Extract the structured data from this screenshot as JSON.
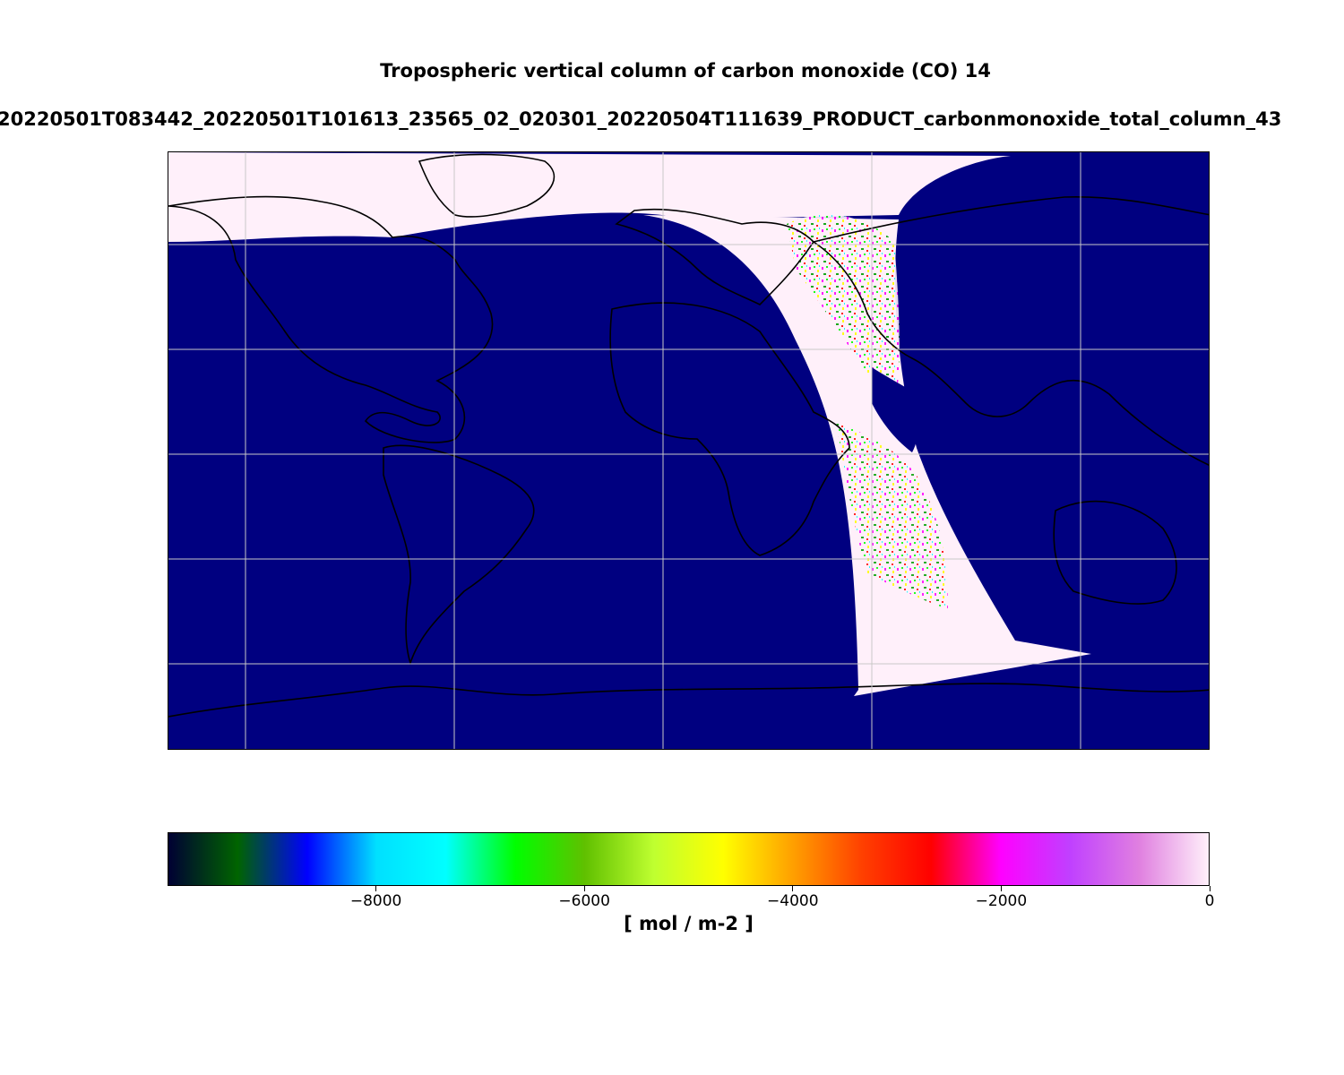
{
  "title": "Tropospheric vertical column of carbon monoxide (CO) 14",
  "subtitle": "20220501T083442_20220501T101613_23565_02_020301_20220504T111639_PRODUCT_carbonmonoxide_total_column_43",
  "map": {
    "projection": "equirectangular",
    "background_color": "#000080",
    "coastline_color": "#000000",
    "gridline_color": "#c8c8c8",
    "swath": {
      "description_colors": [
        "#fff0fa",
        "#ff00ff",
        "#00ff00",
        "#ffff00",
        "#ff0000",
        "#00ffff"
      ]
    }
  },
  "colorbar": {
    "unit_label": "[ mol / m-2 ]",
    "range": [
      -10000,
      0
    ],
    "ticks": [
      {
        "value": -8000,
        "label": "−8000"
      },
      {
        "value": -6000,
        "label": "−6000"
      },
      {
        "value": -4000,
        "label": "−4000"
      },
      {
        "value": -2000,
        "label": "−2000"
      },
      {
        "value": 0,
        "label": "0"
      }
    ],
    "colormap": [
      "#000033",
      "#006400",
      "#0000ff",
      "#00e0ff",
      "#00ffff",
      "#00ff00",
      "#60c000",
      "#bfff30",
      "#ffff00",
      "#ffa000",
      "#ff4000",
      "#ff0000",
      "#ff00ff",
      "#c040ff",
      "#e080e0",
      "#fff0fa"
    ]
  }
}
